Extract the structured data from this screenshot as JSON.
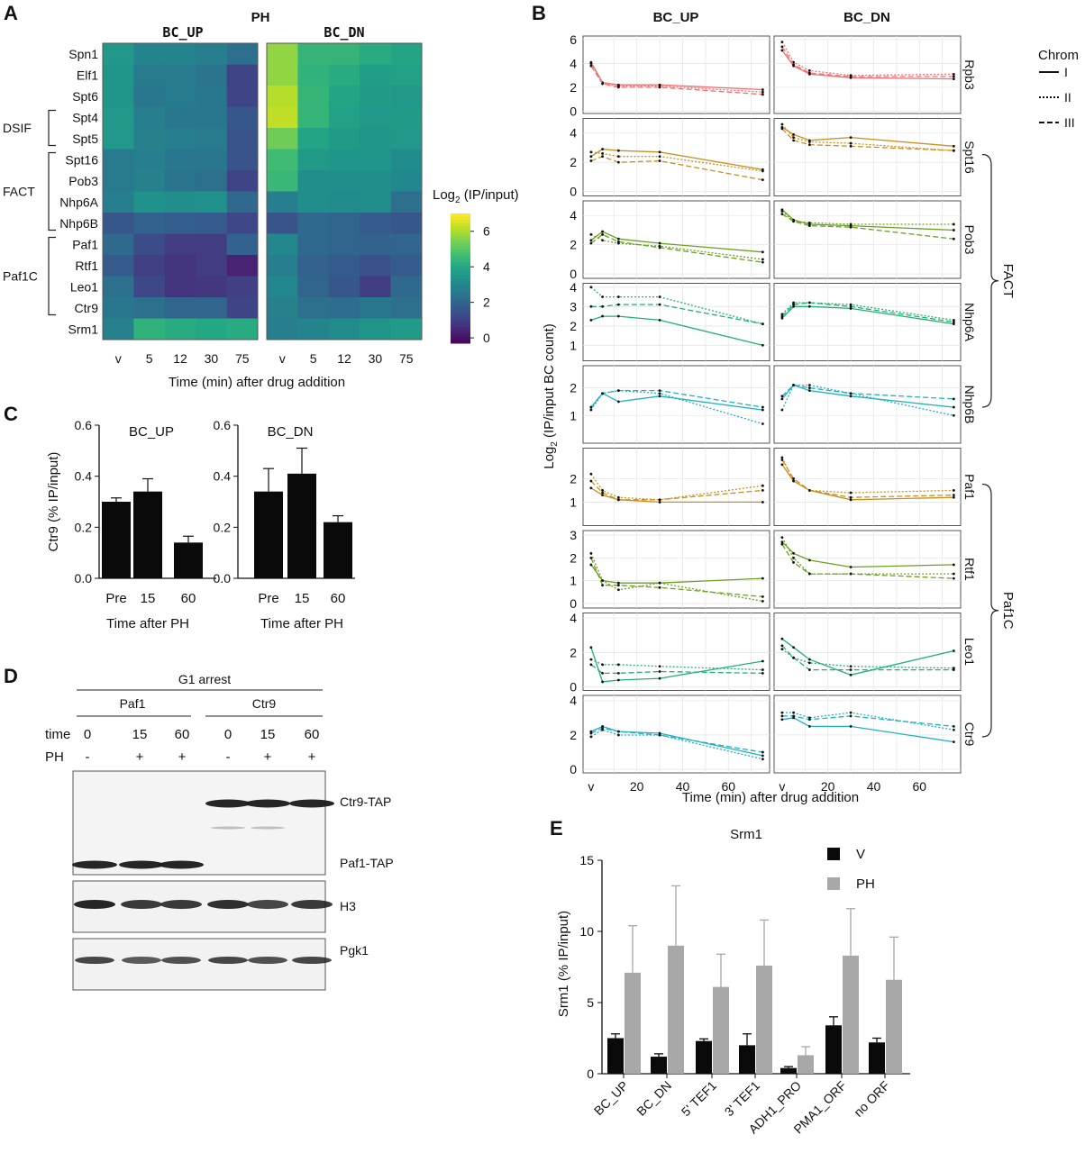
{
  "panels": {
    "A": {
      "label": "A",
      "treatment": "PH",
      "groups": [
        "BC_UP",
        "BC_DN"
      ],
      "genes": [
        "Spn1",
        "Elf1",
        "Spt6",
        "Spt4",
        "Spt5",
        "Spt16",
        "Pob3",
        "Nhp6A",
        "Nhp6B",
        "Paf1",
        "Rtf1",
        "Leo1",
        "Ctr9",
        "Srm1"
      ],
      "complexes": [
        {
          "name": "DSIF",
          "rows": [
            3,
            4
          ]
        },
        {
          "name": "FACT",
          "rows": [
            5,
            8
          ]
        },
        {
          "name": "Paf1C",
          "rows": [
            9,
            12
          ]
        }
      ],
      "times": [
        "v",
        "5",
        "12",
        "30",
        "75"
      ],
      "xlabel": "Time (min) after drug addition",
      "colorbar": {
        "title_main": "Log",
        "title_sub": "2",
        "title_rest": " (IP/input)",
        "ticks": [
          "6",
          "4",
          "2",
          "0"
        ],
        "min": -0.3,
        "max": 7
      }
    },
    "B": {
      "label": "B",
      "columns": [
        "BC_UP",
        "BC_DN"
      ],
      "ylabel_main": "Log",
      "ylabel_sub": "2",
      "ylabel_rest": " (IP/input BC count)",
      "xlabel": "Time (min) after drug addition",
      "xticks": [
        "v",
        "20",
        "40",
        "60"
      ],
      "legend": {
        "title": "Chrom",
        "entries": [
          "I",
          "II",
          "III"
        ]
      },
      "brackets": [
        {
          "name": "FACT",
          "from": 1,
          "to": 4
        },
        {
          "name": "Paf1C",
          "from": 5,
          "to": 8
        }
      ]
    },
    "C": {
      "label": "C",
      "ylabel": "Ctr9 (% IP/input)",
      "xlabel": "Time after PH",
      "yticks": [
        "0.0",
        "0.2",
        "0.4",
        "0.6"
      ]
    },
    "D": {
      "label": "D",
      "title": "G1 arrest",
      "groups": [
        "Paf1",
        "Ctr9"
      ],
      "time_label": "time",
      "ph_label": "PH",
      "times": [
        "0",
        "15",
        "60",
        "0",
        "15",
        "60"
      ],
      "ph": [
        "-",
        "+",
        "+",
        "-",
        "+",
        "+"
      ],
      "bands": [
        "Ctr9-TAP",
        "Paf1-TAP",
        "H3",
        "Pgk1"
      ]
    },
    "E": {
      "label": "E",
      "title": "Srm1",
      "ylabel": "Srm1 (% IP/input)",
      "legend": [
        "V",
        "PH"
      ],
      "yticks": [
        "0",
        "5",
        "10",
        "15"
      ]
    }
  },
  "colors": {
    "v_bar": "#0a0a0a",
    "ph_bar": "#a8a8a8",
    "blot_band": "#1a1a1a"
  },
  "chart_data": [
    {
      "type": "heatmap",
      "panel": "A",
      "title": "PH",
      "rows": [
        "Spn1",
        "Elf1",
        "Spt6",
        "Spt4",
        "Spt5",
        "Spt16",
        "Pob3",
        "Nhp6A",
        "Nhp6B",
        "Paf1",
        "Rtf1",
        "Leo1",
        "Ctr9",
        "Srm1"
      ],
      "columns": [
        "v",
        "5",
        "12",
        "30",
        "75"
      ],
      "xlabel": "Time (min) after drug addition",
      "series": [
        {
          "name": "BC_UP",
          "values": [
            [
              3.6,
              3.0,
              3.0,
              2.8,
              2.4
            ],
            [
              3.5,
              2.7,
              2.7,
              2.5,
              1.2
            ],
            [
              3.5,
              2.6,
              2.7,
              2.6,
              1.2
            ],
            [
              3.6,
              2.8,
              2.6,
              2.6,
              1.7
            ],
            [
              3.6,
              2.9,
              2.8,
              2.7,
              1.6
            ],
            [
              2.7,
              2.8,
              2.6,
              2.6,
              1.6
            ],
            [
              2.7,
              2.9,
              2.5,
              2.4,
              1.2
            ],
            [
              2.8,
              3.4,
              3.3,
              3.4,
              2.2
            ],
            [
              1.7,
              2.0,
              1.9,
              1.8,
              1.3
            ],
            [
              2.2,
              1.4,
              1.0,
              1.0,
              2.0
            ],
            [
              1.8,
              1.1,
              0.8,
              1.0,
              0.4
            ],
            [
              2.4,
              1.3,
              0.8,
              0.9,
              1.1
            ],
            [
              2.6,
              2.4,
              2.1,
              2.1,
              1.2
            ],
            [
              2.9,
              4.4,
              4.2,
              4.1,
              4.2
            ]
          ]
        },
        {
          "name": "BC_DN",
          "values": [
            [
              5.8,
              4.5,
              4.5,
              4.2,
              4.0
            ],
            [
              5.8,
              4.4,
              4.2,
              3.8,
              3.9
            ],
            [
              6.2,
              4.5,
              4.0,
              3.7,
              3.6
            ],
            [
              6.3,
              4.5,
              3.9,
              3.6,
              3.7
            ],
            [
              5.4,
              4.0,
              3.7,
              3.5,
              3.6
            ],
            [
              4.7,
              3.7,
              3.5,
              3.5,
              3.2
            ],
            [
              4.6,
              3.3,
              3.3,
              3.3,
              3.1
            ],
            [
              2.8,
              3.3,
              3.2,
              3.3,
              2.4
            ],
            [
              1.6,
              2.2,
              2.1,
              1.8,
              1.7
            ],
            [
              3.1,
              2.2,
              2.1,
              2.0,
              2.1
            ],
            [
              2.8,
              2.0,
              1.8,
              1.5,
              1.8
            ],
            [
              3.1,
              2.1,
              1.7,
              1.0,
              2.2
            ],
            [
              2.9,
              2.4,
              2.3,
              2.6,
              2.4
            ],
            [
              2.8,
              3.0,
              3.2,
              3.5,
              3.7
            ]
          ]
        }
      ]
    },
    {
      "type": "line",
      "panel": "B",
      "x": [
        0,
        5,
        12,
        30,
        75
      ],
      "xlabel": "Time (min) after drug addition",
      "legend_position": "right",
      "facets": [
        {
          "name": "Rpb3",
          "color": "#f07070",
          "ylim": [
            -0.2,
            6.3
          ],
          "yticks": [
            0,
            2,
            4,
            6
          ],
          "up": {
            "I": [
              4.1,
              2.4,
              2.2,
              2.2,
              1.8
            ],
            "II": [
              4.0,
              2.3,
              2.1,
              2.1,
              1.6
            ],
            "III": [
              3.8,
              2.3,
              2.0,
              2.0,
              1.4
            ]
          },
          "dn": {
            "I": [
              5.1,
              3.8,
              3.1,
              2.8,
              2.7
            ],
            "II": [
              5.8,
              4.1,
              3.4,
              3.0,
              3.1
            ],
            "III": [
              5.4,
              3.9,
              3.2,
              2.9,
              2.9
            ]
          }
        },
        {
          "name": "Spt16",
          "color": "#c89020",
          "ylim": [
            -0.3,
            5.0
          ],
          "yticks": [
            0,
            2,
            4
          ],
          "up": {
            "I": [
              2.4,
              2.9,
              2.8,
              2.7,
              1.5
            ],
            "II": [
              2.7,
              2.6,
              2.4,
              2.4,
              1.4
            ],
            "III": [
              2.1,
              2.4,
              2.0,
              2.1,
              0.8
            ]
          },
          "dn": {
            "I": [
              4.4,
              3.9,
              3.5,
              3.7,
              3.1
            ],
            "II": [
              4.6,
              3.7,
              3.4,
              3.3,
              2.8
            ],
            "III": [
              4.3,
              3.5,
              3.2,
              3.1,
              2.8
            ]
          }
        },
        {
          "name": "Pob3",
          "color": "#6aa020",
          "ylim": [
            -0.3,
            5.0
          ],
          "yticks": [
            0,
            2,
            4
          ],
          "up": {
            "I": [
              2.3,
              2.9,
              2.4,
              2.1,
              1.5
            ],
            "II": [
              2.7,
              2.3,
              2.1,
              1.9,
              1.0
            ],
            "III": [
              2.1,
              2.7,
              2.2,
              1.8,
              0.8
            ]
          },
          "dn": {
            "I": [
              4.4,
              3.7,
              3.4,
              3.3,
              3.0
            ],
            "II": [
              4.3,
              3.6,
              3.5,
              3.4,
              3.4
            ],
            "III": [
              4.1,
              3.6,
              3.3,
              3.2,
              2.4
            ]
          }
        },
        {
          "name": "Nhp6A",
          "color": "#20b070",
          "ylim": [
            0.2,
            4.2
          ],
          "yticks": [
            1,
            2,
            3,
            4
          ],
          "up": {
            "I": [
              2.3,
              2.5,
              2.5,
              2.3,
              1.0
            ],
            "II": [
              4.0,
              3.5,
              3.5,
              3.5,
              2.1
            ],
            "III": [
              3.0,
              3.0,
              3.1,
              3.1,
              2.1
            ]
          },
          "dn": {
            "I": [
              2.4,
              3.0,
              3.0,
              2.9,
              2.1
            ],
            "II": [
              2.6,
              3.2,
              3.2,
              3.1,
              2.3
            ],
            "III": [
              2.5,
              3.1,
              3.2,
              3.0,
              2.2
            ]
          }
        },
        {
          "name": "Nhp6B",
          "color": "#20b0c0",
          "ylim": [
            0.0,
            2.8
          ],
          "yticks": [
            1,
            2
          ],
          "up": {
            "I": [
              1.3,
              1.8,
              1.5,
              1.7,
              1.2
            ],
            "II": [
              1.2,
              1.8,
              1.9,
              1.8,
              0.7
            ],
            "III": [
              1.3,
              1.8,
              1.9,
              1.9,
              1.3
            ]
          },
          "dn": {
            "I": [
              1.6,
              2.1,
              1.9,
              1.7,
              1.3
            ],
            "II": [
              1.2,
              2.1,
              2.1,
              1.8,
              1.0
            ],
            "III": [
              1.7,
              2.1,
              2.0,
              1.8,
              1.6
            ]
          }
        },
        {
          "name": "Paf1",
          "color": "#c89020",
          "ylim": [
            0.0,
            3.3
          ],
          "yticks": [
            1,
            2
          ],
          "up": {
            "I": [
              1.6,
              1.3,
              1.1,
              1.0,
              1.0
            ],
            "II": [
              2.2,
              1.5,
              1.2,
              1.1,
              1.7
            ],
            "III": [
              1.9,
              1.4,
              1.1,
              1.1,
              1.5
            ]
          },
          "dn": {
            "I": [
              2.6,
              1.9,
              1.5,
              1.1,
              1.2
            ],
            "II": [
              2.9,
              1.9,
              1.5,
              1.4,
              1.5
            ],
            "III": [
              2.8,
              2.0,
              1.5,
              1.2,
              1.3
            ]
          }
        },
        {
          "name": "Rtf1",
          "color": "#6aa020",
          "ylim": [
            -0.2,
            3.2
          ],
          "yticks": [
            0,
            1,
            2,
            3
          ],
          "up": {
            "I": [
              1.7,
              1.0,
              0.9,
              0.9,
              1.1
            ],
            "II": [
              2.2,
              1.0,
              0.6,
              0.9,
              0.1
            ],
            "III": [
              2.0,
              0.8,
              0.8,
              0.7,
              0.3
            ]
          },
          "dn": {
            "I": [
              2.7,
              2.2,
              1.9,
              1.6,
              1.7
            ],
            "II": [
              2.9,
              2.0,
              1.3,
              1.3,
              1.3
            ],
            "III": [
              2.6,
              1.8,
              1.3,
              1.3,
              1.1
            ]
          }
        },
        {
          "name": "Leo1",
          "color": "#20b070",
          "ylim": [
            -0.2,
            4.3
          ],
          "yticks": [
            0,
            2,
            4
          ],
          "up": {
            "I": [
              2.3,
              0.3,
              0.4,
              0.5,
              1.5
            ],
            "II": [
              1.6,
              1.3,
              1.3,
              1.2,
              1.0
            ],
            "III": [
              1.3,
              0.8,
              0.8,
              0.9,
              0.8
            ]
          },
          "dn": {
            "I": [
              2.8,
              2.3,
              1.6,
              0.7,
              2.1
            ],
            "II": [
              2.2,
              1.7,
              1.4,
              1.2,
              1.1
            ],
            "III": [
              2.4,
              1.7,
              1.0,
              1.0,
              1.0
            ]
          }
        },
        {
          "name": "Ctr9",
          "color": "#20b0c0",
          "ylim": [
            -0.2,
            4.3
          ],
          "yticks": [
            0,
            2,
            4
          ],
          "up": {
            "I": [
              2.2,
              2.5,
              2.2,
              2.1,
              0.8
            ],
            "II": [
              1.9,
              2.3,
              2.0,
              2.0,
              0.6
            ],
            "III": [
              2.1,
              2.4,
              2.2,
              2.0,
              1.0
            ]
          },
          "dn": {
            "I": [
              2.9,
              3.0,
              2.5,
              2.5,
              1.6
            ],
            "II": [
              3.3,
              3.3,
              3.0,
              3.3,
              2.3
            ],
            "III": [
              3.1,
              3.1,
              2.9,
              3.1,
              2.5
            ]
          }
        }
      ]
    },
    {
      "type": "bar",
      "panel": "C",
      "ylabel": "Ctr9 (% IP/input)",
      "xlabel": "Time after PH",
      "ylim": [
        0,
        0.6
      ],
      "groups": [
        {
          "name": "BC_UP",
          "categories": [
            "Pre",
            "15",
            "60"
          ],
          "values": [
            0.3,
            0.34,
            0.14
          ],
          "errors": [
            0.015,
            0.05,
            0.025
          ]
        },
        {
          "name": "BC_DN",
          "categories": [
            "Pre",
            "15",
            "60"
          ],
          "values": [
            0.34,
            0.41,
            0.22
          ],
          "errors": [
            0.09,
            0.1,
            0.025
          ]
        }
      ]
    },
    {
      "type": "bar",
      "panel": "E",
      "title": "Srm1",
      "ylabel": "Srm1 (% IP/input)",
      "ylim": [
        0,
        15
      ],
      "categories": [
        "BC_UP",
        "BC_DN",
        "5' TEF1",
        "3' TEF1",
        "ADH1_PRO",
        "PMA1_ORF",
        "no ORF"
      ],
      "series": [
        {
          "name": "V",
          "values": [
            2.5,
            1.2,
            2.3,
            2.0,
            0.4,
            3.4,
            2.2
          ],
          "errors": [
            0.3,
            0.2,
            0.15,
            0.8,
            0.1,
            0.6,
            0.3
          ]
        },
        {
          "name": "PH",
          "values": [
            7.1,
            9.0,
            6.1,
            7.6,
            1.3,
            8.3,
            6.6
          ],
          "errors": [
            3.3,
            4.2,
            2.3,
            3.2,
            0.6,
            3.3,
            3.0
          ]
        }
      ]
    }
  ]
}
